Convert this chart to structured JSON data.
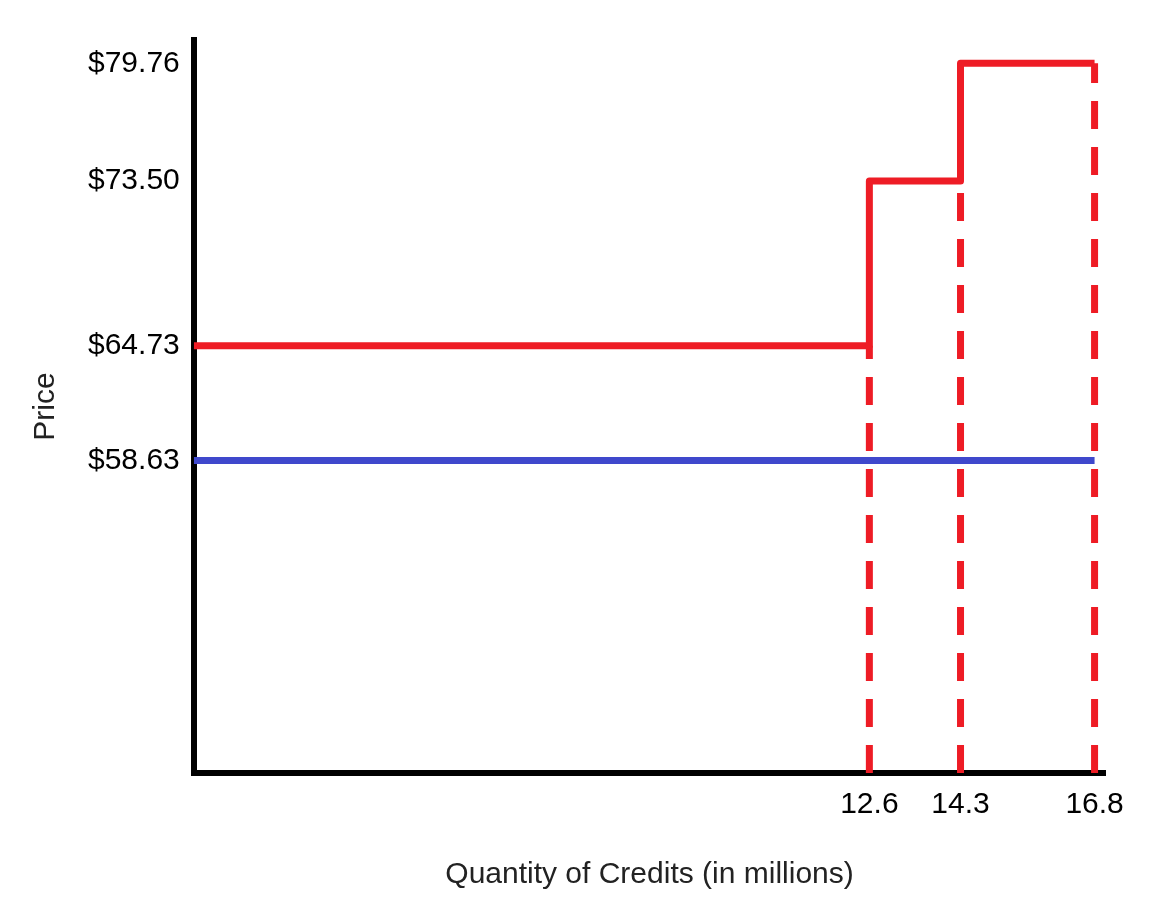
{
  "chart_data": {
    "type": "step",
    "xlabel": "Quantity of Credits (in millions)",
    "ylabel": "Price",
    "series": [
      {
        "type": "step",
        "color": "#ee1c25",
        "x": [
          0,
          12.6,
          14.3,
          16.8
        ],
        "values": [
          64.73,
          73.5,
          79.76,
          79.76
        ]
      },
      {
        "type": "line",
        "color": "#3f48cc",
        "x": [
          0,
          16.8
        ],
        "values": [
          58.63,
          58.63
        ]
      }
    ],
    "xlim": [
      0,
      17
    ],
    "xticks": [
      12.6,
      14.3,
      16.8
    ],
    "ylim": [
      42,
      81
    ],
    "yticks": [
      {
        "value": 58.63,
        "label": "$58.63"
      },
      {
        "value": 64.73,
        "label": "$64.73"
      },
      {
        "value": 73.5,
        "label": "$73.50"
      },
      {
        "value": 79.76,
        "label": "$79.76"
      }
    ],
    "ref_lines": [
      {
        "axis": "x",
        "value": 12.6,
        "color": "#ee1c25",
        "line_style": "dashed"
      },
      {
        "axis": "x",
        "value": 14.3,
        "color": "#ee1c25",
        "line_style": "dashed"
      },
      {
        "axis": "x",
        "value": 16.8,
        "color": "#ee1c25",
        "line_style": "dashed"
      }
    ],
    "grid": false,
    "legend": false,
    "marker": "none",
    "line_style": "solid"
  }
}
